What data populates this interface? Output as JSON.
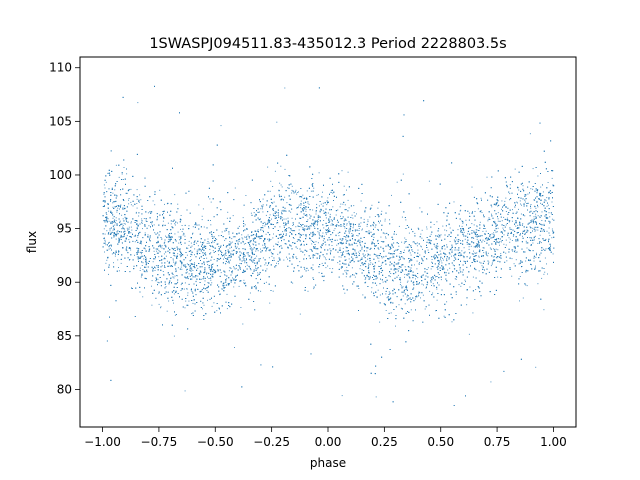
{
  "chart_data": {
    "type": "scatter",
    "title": "1SWASPJ094511.83-435012.3 Period 2228803.5s",
    "xlabel": "phase",
    "ylabel": "flux",
    "xlim": [
      -1.1,
      1.1
    ],
    "ylim": [
      76.5,
      111
    ],
    "x_ticks": [
      -1.0,
      -0.75,
      -0.5,
      -0.25,
      0.0,
      0.25,
      0.5,
      0.75,
      1.0
    ],
    "x_tick_labels": [
      "−1.00",
      "−0.75",
      "−0.50",
      "−0.25",
      "0.00",
      "0.25",
      "0.50",
      "0.75",
      "1.00"
    ],
    "y_ticks": [
      80,
      85,
      90,
      95,
      100,
      105,
      110
    ],
    "y_tick_labels": [
      "80",
      "85",
      "90",
      "95",
      "100",
      "105",
      "110"
    ],
    "grid": false,
    "marker_color": "#1f77b4",
    "series": [
      {
        "phase_range": [
          -1.0,
          1.0
        ],
        "flux_profile": {
          "phase": [
            -1.0,
            -0.9,
            -0.8,
            -0.7,
            -0.6,
            -0.5,
            -0.4,
            -0.3,
            -0.2,
            -0.1,
            0.0,
            0.1,
            0.2,
            0.3,
            0.4,
            0.5,
            0.6,
            0.7,
            0.8,
            0.9,
            1.0
          ],
          "median_flux": [
            95.5,
            95.5,
            93.5,
            92.5,
            92.0,
            92.0,
            92.5,
            94.0,
            95.5,
            95.0,
            94.5,
            93.5,
            92.5,
            91.5,
            91.5,
            92.0,
            92.5,
            94.0,
            95.0,
            95.5,
            95.5
          ],
          "flux_min": [
            91.5,
            91.0,
            88.5,
            87.5,
            87.5,
            88.0,
            88.5,
            90.0,
            91.5,
            91.0,
            90.5,
            89.5,
            88.5,
            87.5,
            87.5,
            88.0,
            88.5,
            90.0,
            91.0,
            91.5,
            91.5
          ],
          "flux_max": [
            101.0,
            100.5,
            98.5,
            97.5,
            97.0,
            97.0,
            97.5,
            99.0,
            101.0,
            100.5,
            99.5,
            98.5,
            97.5,
            96.5,
            96.5,
            97.0,
            97.5,
            99.0,
            100.5,
            101.5,
            102.0
          ]
        },
        "outlier_flux_range": [
          78,
          109
        ]
      }
    ]
  }
}
